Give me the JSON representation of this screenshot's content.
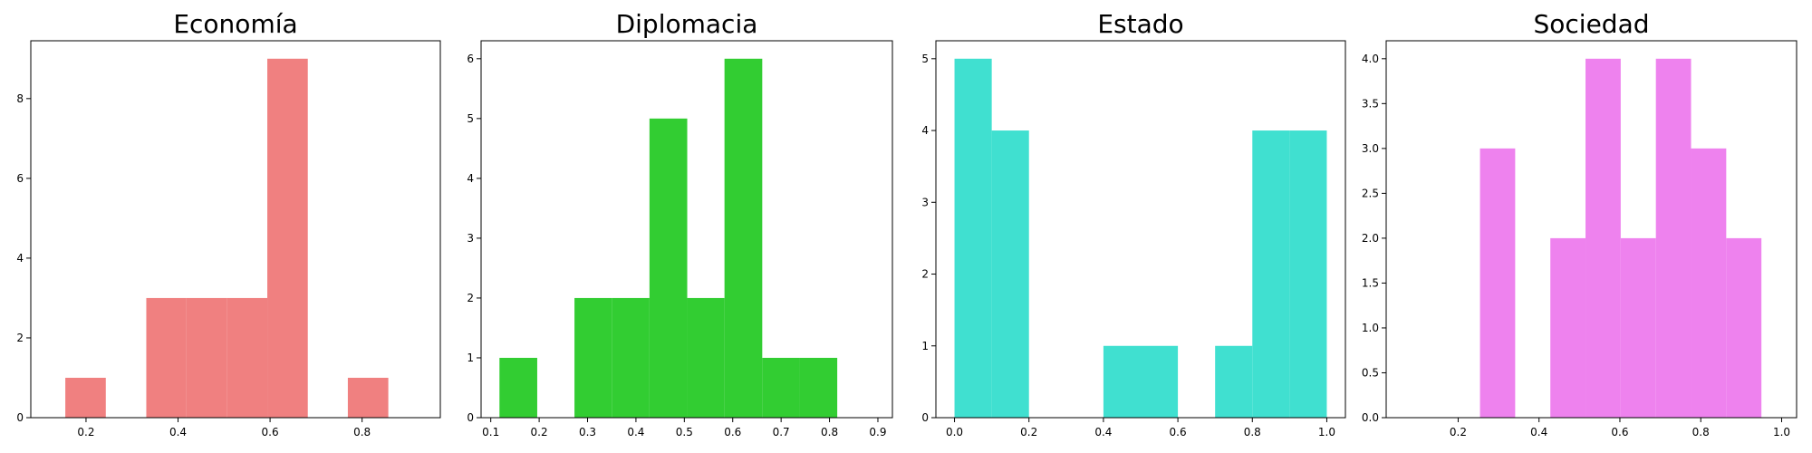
{
  "chart_data": [
    {
      "type": "bar",
      "title": "Economía",
      "color": "#f08080",
      "xlim": [
        0.08,
        0.97
      ],
      "ylim": [
        0,
        9.45
      ],
      "xticks": [
        0.2,
        0.4,
        0.6,
        0.8
      ],
      "yticks": [
        0,
        2,
        4,
        6,
        8
      ],
      "bins": [
        {
          "x0": 0.155,
          "x1": 0.243,
          "count": 1
        },
        {
          "x0": 0.243,
          "x1": 0.331,
          "count": 0
        },
        {
          "x0": 0.331,
          "x1": 0.418,
          "count": 3
        },
        {
          "x0": 0.418,
          "x1": 0.506,
          "count": 3
        },
        {
          "x0": 0.506,
          "x1": 0.594,
          "count": 3
        },
        {
          "x0": 0.594,
          "x1": 0.682,
          "count": 9
        },
        {
          "x0": 0.682,
          "x1": 0.769,
          "count": 0
        },
        {
          "x0": 0.769,
          "x1": 0.857,
          "count": 1
        }
      ]
    },
    {
      "type": "bar",
      "title": "Diplomacia",
      "color": "#32cd32",
      "xlim": [
        0.08,
        0.93
      ],
      "ylim": [
        0,
        6.3
      ],
      "xticks": [
        0.1,
        0.2,
        0.3,
        0.4,
        0.5,
        0.6,
        0.7,
        0.8,
        0.9
      ],
      "yticks": [
        0,
        1,
        2,
        3,
        4,
        5,
        6
      ],
      "bins": [
        {
          "x0": 0.118,
          "x1": 0.196,
          "count": 1
        },
        {
          "x0": 0.196,
          "x1": 0.273,
          "count": 0
        },
        {
          "x0": 0.273,
          "x1": 0.351,
          "count": 2
        },
        {
          "x0": 0.351,
          "x1": 0.428,
          "count": 2
        },
        {
          "x0": 0.428,
          "x1": 0.506,
          "count": 5
        },
        {
          "x0": 0.506,
          "x1": 0.583,
          "count": 2
        },
        {
          "x0": 0.583,
          "x1": 0.661,
          "count": 6
        },
        {
          "x0": 0.661,
          "x1": 0.738,
          "count": 1
        },
        {
          "x0": 0.738,
          "x1": 0.816,
          "count": 1
        }
      ]
    },
    {
      "type": "bar",
      "title": "Estado",
      "color": "#40e0d0",
      "xlim": [
        -0.05,
        1.05
      ],
      "ylim": [
        0,
        5.25
      ],
      "xticks": [
        0.0,
        0.2,
        0.4,
        0.6,
        0.8,
        1.0
      ],
      "yticks": [
        0,
        1,
        2,
        3,
        4,
        5
      ],
      "bins": [
        {
          "x0": 0.0,
          "x1": 0.1,
          "count": 5
        },
        {
          "x0": 0.1,
          "x1": 0.2,
          "count": 4
        },
        {
          "x0": 0.2,
          "x1": 0.3,
          "count": 0
        },
        {
          "x0": 0.3,
          "x1": 0.4,
          "count": 0
        },
        {
          "x0": 0.4,
          "x1": 0.5,
          "count": 1
        },
        {
          "x0": 0.5,
          "x1": 0.6,
          "count": 1
        },
        {
          "x0": 0.6,
          "x1": 0.7,
          "count": 0
        },
        {
          "x0": 0.7,
          "x1": 0.8,
          "count": 1
        },
        {
          "x0": 0.8,
          "x1": 0.9,
          "count": 4
        },
        {
          "x0": 0.9,
          "x1": 1.0,
          "count": 4
        }
      ]
    },
    {
      "type": "bar",
      "title": "Sociedad",
      "color": "#ee82ee",
      "xlim": [
        0.022,
        1.037
      ],
      "ylim": [
        0,
        4.2
      ],
      "xticks": [
        0.2,
        0.4,
        0.6,
        0.8,
        1.0
      ],
      "yticks": [
        0.0,
        0.5,
        1.0,
        1.5,
        2.0,
        2.5,
        3.0,
        3.5,
        4.0
      ],
      "bins": [
        {
          "x0": 0.254,
          "x1": 0.341,
          "count": 3
        },
        {
          "x0": 0.341,
          "x1": 0.428,
          "count": 0
        },
        {
          "x0": 0.428,
          "x1": 0.515,
          "count": 2
        },
        {
          "x0": 0.515,
          "x1": 0.602,
          "count": 4
        },
        {
          "x0": 0.602,
          "x1": 0.689,
          "count": 2
        },
        {
          "x0": 0.689,
          "x1": 0.776,
          "count": 4
        },
        {
          "x0": 0.776,
          "x1": 0.863,
          "count": 3
        },
        {
          "x0": 0.863,
          "x1": 0.95,
          "count": 2
        }
      ]
    }
  ]
}
